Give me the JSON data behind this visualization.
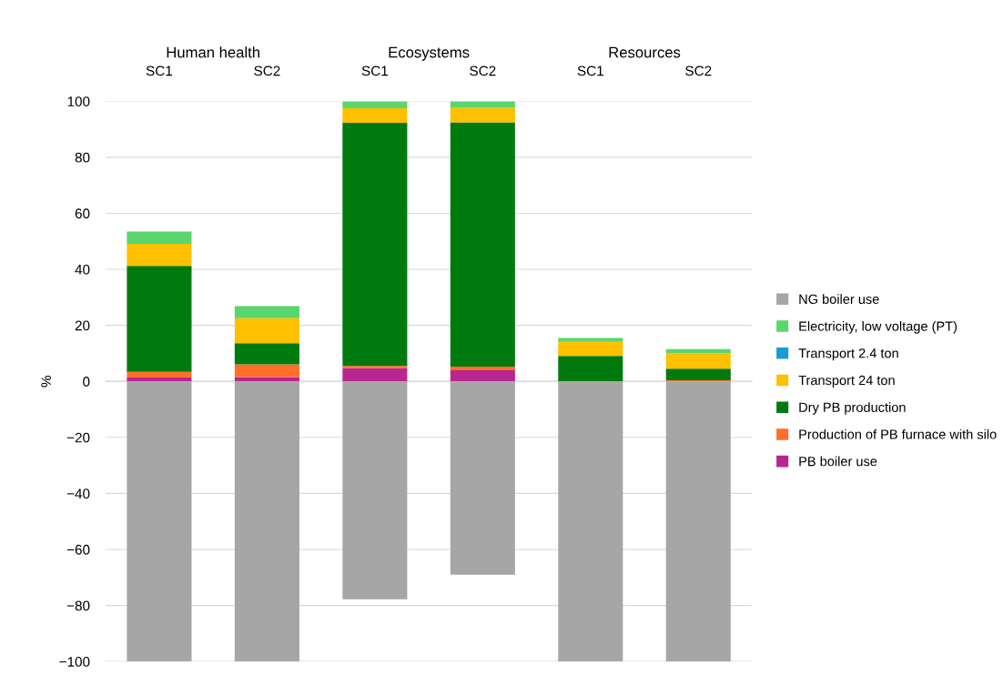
{
  "chart_data": {
    "type": "bar",
    "stacked": true,
    "ylabel": "%",
    "categories": [
      "SC1",
      "SC2",
      "SC1",
      "SC2",
      "SC1",
      "SC2"
    ],
    "annotations": [
      "Human health",
      "Ecosystems",
      "Resources"
    ],
    "series": [
      {
        "name": "PB boiler use",
        "color": "#b8268f",
        "values": [
          1.4,
          1.5,
          4.7,
          4.0,
          0,
          0
        ]
      },
      {
        "name": "Production of PB furnace with silo",
        "color": "#ff6f2a",
        "values": [
          2.0,
          4.6,
          0.8,
          1.3,
          null,
          0.4
        ]
      },
      {
        "name": "Dry PB production",
        "color": "#007a0f",
        "values": [
          37.8,
          7.5,
          86.8,
          87.2,
          9.1,
          4.1
        ]
      },
      {
        "name": "Transport 24 ton",
        "color": "#ffc000",
        "values": [
          7.9,
          9.0,
          5.2,
          5.2,
          5.0,
          5.6
        ]
      },
      {
        "name": "Transport 2.4 ton",
        "color": "#1a9ad6",
        "values": [
          0,
          0,
          0,
          0,
          0,
          0
        ]
      },
      {
        "name": "Electricity, low voltage (PT)",
        "color": "#5ad66e",
        "values": [
          4.4,
          4.3,
          2.4,
          2.2,
          1.4,
          1.4
        ]
      },
      {
        "name": "NG boiler use",
        "color": "#a6a6a6",
        "values": [
          -100,
          -100,
          -77.8,
          -69.0,
          -100,
          -100
        ]
      }
    ],
    "ylim": [
      -100,
      100
    ],
    "yticks": [
      {
        "value": -100,
        "label": "−100"
      },
      {
        "value": -80,
        "label": "−80"
      },
      {
        "value": -60,
        "label": "−60"
      },
      {
        "value": -40,
        "label": "−40"
      },
      {
        "value": -20,
        "label": "−20"
      },
      0,
      20,
      40,
      60,
      80,
      100
    ],
    "grid": "y",
    "legend": "right"
  }
}
